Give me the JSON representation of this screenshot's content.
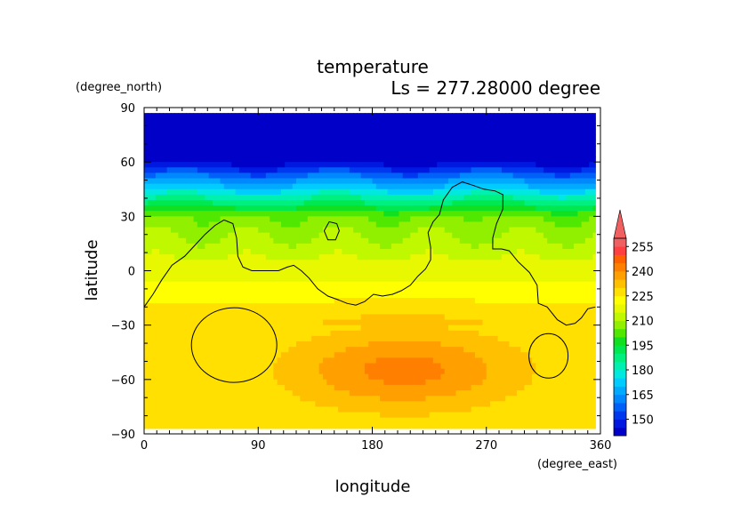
{
  "chart_data": {
    "type": "heatmap",
    "title": "temperature",
    "subtitle": "Ls = 277.28000 degree",
    "xlabel": "longitude",
    "ylabel": "latitude",
    "x_unit": "(degree_east)",
    "y_unit": "(degree_north)",
    "xlim": [
      0,
      360
    ],
    "ylim": [
      -90,
      90
    ],
    "x_ticks": [
      "0",
      "90",
      "180",
      "270",
      "360"
    ],
    "y_ticks": [
      "90",
      "60",
      "30",
      "0",
      "−30",
      "−60",
      "−90"
    ],
    "data_extent": {
      "lon": [
        0,
        356
      ],
      "lat": [
        -87,
        87
      ]
    },
    "colorbar": {
      "levels": [
        140,
        145,
        150,
        155,
        160,
        165,
        170,
        175,
        180,
        185,
        190,
        195,
        200,
        205,
        210,
        215,
        220,
        225,
        230,
        235,
        240,
        245,
        250,
        255,
        260
      ],
      "colors": [
        "#0000c8",
        "#0018e0",
        "#0038f0",
        "#0060f8",
        "#0088ff",
        "#00aaff",
        "#00ccff",
        "#00e8e0",
        "#00f0b0",
        "#00f080",
        "#00e850",
        "#10e020",
        "#50e800",
        "#90f000",
        "#c0f800",
        "#e8f800",
        "#ffff00",
        "#ffe000",
        "#ffc000",
        "#ffa000",
        "#ff8000",
        "#ff6000",
        "#ff4040",
        "#f06060"
      ],
      "tick_labels": [
        "150",
        "165",
        "180",
        "195",
        "210",
        "225",
        "240",
        "255"
      ],
      "extend": "max"
    },
    "contour_color": "#000000"
  }
}
